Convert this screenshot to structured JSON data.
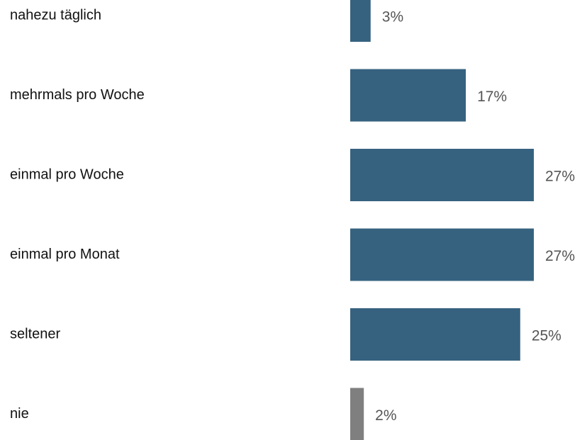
{
  "chart_data": {
    "type": "hbar",
    "categories": [
      "nahezu täglich",
      "mehrmals pro Woche",
      "einmal pro Woche",
      "einmal pro Monat",
      "seltener",
      "nie"
    ],
    "values": [
      3,
      17,
      27,
      27,
      25,
      2
    ],
    "value_labels": [
      "3%",
      "17%",
      "27%",
      "27%",
      "25%",
      "2%"
    ],
    "colors": [
      "#36627f",
      "#36627f",
      "#36627f",
      "#36627f",
      "#36627f",
      "#7f7f7f"
    ]
  }
}
